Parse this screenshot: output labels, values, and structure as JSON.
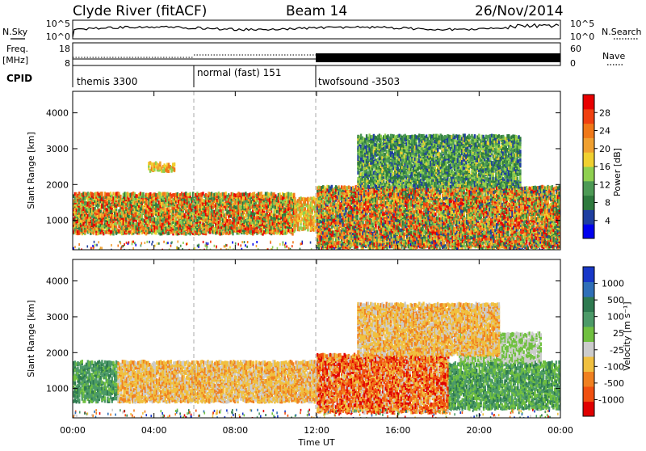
{
  "header": {
    "station": "Clyde River (fitACF)",
    "beam": "Beam 14",
    "date": "26/Nov/2014"
  },
  "noise_panel": {
    "left_label": "N.Sky",
    "right_label": "N.Search",
    "left_ticks": [
      "10^5",
      "10^0"
    ],
    "right_ticks": [
      "10^5",
      "10^0"
    ]
  },
  "freq_panel": {
    "left_label_1": "Freq.",
    "left_label_2": "[MHz]",
    "right_label": "Nave",
    "left_ticks": [
      "18",
      "8"
    ],
    "right_ticks": [
      "60",
      "0"
    ]
  },
  "cpid_panel": {
    "label": "CPID",
    "segments": [
      {
        "name": "themis 3300",
        "start_hour": 0
      },
      {
        "name": "normal (fast) 151",
        "start_hour": 6
      },
      {
        "name": "twofsound -3503",
        "start_hour": 12
      }
    ]
  },
  "x_axis": {
    "label": "Time UT",
    "ticks": [
      "00:00",
      "04:00",
      "08:00",
      "12:00",
      "16:00",
      "20:00",
      "00:00"
    ],
    "range_hours": [
      0,
      24
    ]
  },
  "y_axis": {
    "label": "Slant Range [km]",
    "ticks": [
      "1000",
      "2000",
      "3000",
      "4000"
    ],
    "range_km": [
      180,
      4600
    ]
  },
  "power_colorbar": {
    "title": "Power [dB]",
    "ticks": [
      "28",
      "24",
      "20",
      "16",
      "12",
      "8",
      "4"
    ],
    "colors": [
      "#0000ee",
      "#1f3fa0",
      "#2e7a3e",
      "#4d9a55",
      "#8fd050",
      "#f0d030",
      "#f0a030",
      "#f07818",
      "#f04010",
      "#e80000"
    ]
  },
  "velocity_colorbar": {
    "title": "Velocity [m s⁻¹]",
    "ticks": [
      "1000",
      "500",
      "100",
      "25",
      "-25",
      "-100",
      "-500",
      "-1000"
    ],
    "colors": [
      "#1838c8",
      "#2f6fb8",
      "#2e7a50",
      "#4c9a68",
      "#70c040",
      "#cccccc",
      "#f0c040",
      "#f08020",
      "#f05010",
      "#e00000"
    ]
  },
  "chart_data": [
    {
      "type": "heatmap",
      "title": "Power",
      "xlabel": "Time UT",
      "ylabel": "Slant Range [km]",
      "xlim": [
        0,
        24
      ],
      "ylim": [
        180,
        4600
      ],
      "colorbar_label": "Power [dB]",
      "colorbar_range": [
        0,
        30
      ],
      "regions": [
        {
          "time_range": [
            0.0,
            10.9
          ],
          "range_km": [
            700,
            1800
          ],
          "power_db": [
            6,
            30
          ]
        },
        {
          "time_range": [
            10.9,
            12.0
          ],
          "range_km": [
            800,
            1700
          ],
          "power_db": [
            12,
            24
          ]
        },
        {
          "time_range": [
            12.0,
            24.0
          ],
          "range_km": [
            300,
            2000
          ],
          "power_db": [
            4,
            30
          ]
        },
        {
          "time_range": [
            3.7,
            5.0
          ],
          "range_km": [
            2450,
            2650
          ],
          "power_db": [
            12,
            24
          ]
        },
        {
          "time_range": [
            14.0,
            22.0
          ],
          "range_km": [
            2000,
            3400
          ],
          "power_db": [
            4,
            16
          ]
        }
      ]
    },
    {
      "type": "heatmap",
      "title": "Velocity",
      "xlabel": "Time UT",
      "ylabel": "Slant Range [km]",
      "xlim": [
        0,
        24
      ],
      "ylim": [
        180,
        4600
      ],
      "colorbar_label": "Velocity [m s⁻¹]",
      "colorbar_range": [
        -1000,
        1000
      ],
      "regions": [
        {
          "time_range": [
            0.0,
            2.2
          ],
          "range_km": [
            700,
            1800
          ],
          "velocity": [
            100,
            500
          ]
        },
        {
          "time_range": [
            2.2,
            12.0
          ],
          "range_km": [
            700,
            1800
          ],
          "velocity": [
            -500,
            -100
          ]
        },
        {
          "time_range": [
            12.0,
            18.5
          ],
          "range_km": [
            400,
            2000
          ],
          "velocity": [
            -1000,
            -100
          ]
        },
        {
          "time_range": [
            18.5,
            24.0
          ],
          "range_km": [
            500,
            1800
          ],
          "velocity": [
            25,
            500
          ]
        },
        {
          "time_range": [
            19.0,
            23.0
          ],
          "range_km": [
            1800,
            2600
          ],
          "velocity": [
            -25,
            25
          ]
        },
        {
          "time_range": [
            14.0,
            21.0
          ],
          "range_km": [
            2000,
            3400
          ],
          "velocity": [
            -500,
            -100
          ]
        }
      ]
    }
  ]
}
